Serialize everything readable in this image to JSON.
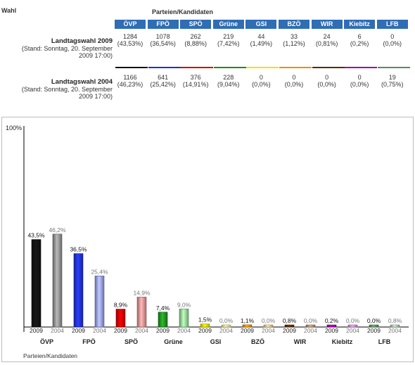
{
  "header": {
    "wahl_label": "Wahl",
    "parteien_label": "Parteien/Kandidaten"
  },
  "parties": [
    {
      "name": "ÖVP",
      "color": "#111111"
    },
    {
      "name": "FPÖ",
      "color": "#1f2fd0"
    },
    {
      "name": "SPÖ",
      "color": "#d40000"
    },
    {
      "name": "Grüne",
      "color": "#1e8c1e"
    },
    {
      "name": "GSI",
      "color": "#f0e000"
    },
    {
      "name": "BZÖ",
      "color": "#f08c00"
    },
    {
      "name": "WIR",
      "color": "#5a2a00"
    },
    {
      "name": "Kiebitz",
      "color": "#a000a0"
    },
    {
      "name": "LFB",
      "color": "#5a8c5a"
    }
  ],
  "rows": [
    {
      "title": "Landtagswahl 2009",
      "stand_line1": "(Stand: Sonntag, 20. September",
      "stand_line2": "2009 17:00)",
      "votes": [
        "1284",
        "1078",
        "262",
        "219",
        "44",
        "33",
        "24",
        "6",
        "0"
      ],
      "pcts": [
        "(43,53%)",
        "(36,54%)",
        "(8,88%)",
        "(7,42%)",
        "(1,49%)",
        "(1,12%)",
        "(0,81%)",
        "(0,2%)",
        "(0,0%)"
      ]
    },
    {
      "title": "Landtagswahl 2004",
      "stand_line1": "(Stand: Sonntag, 20. September",
      "stand_line2": "2009 17:00)",
      "votes": [
        "1166",
        "641",
        "376",
        "228",
        "0",
        "0",
        "0",
        "0",
        "19"
      ],
      "pcts": [
        "(46,23%)",
        "(25,42%)",
        "(14,91%)",
        "(9,04%)",
        "(0,0%)",
        "(0,0%)",
        "(0,0%)",
        "(0,0%)",
        "(0,75%)"
      ]
    }
  ],
  "chart_data": {
    "type": "bar",
    "ylim": [
      0,
      100
    ],
    "ytick_label": "100%",
    "xlabel": "Parteien/Kandidaten",
    "categories": [
      "ÖVP",
      "FPÖ",
      "SPÖ",
      "Grüne",
      "GSI",
      "BZÖ",
      "WIR",
      "Kiebitz",
      "LFB"
    ],
    "series": [
      {
        "name": "2009",
        "values": [
          43.5,
          36.5,
          8.9,
          7.4,
          1.5,
          1.1,
          0.8,
          0.2,
          0.0
        ],
        "labels": [
          "43,5%",
          "36,5%",
          "8,9%",
          "7,4%",
          "1,5%",
          "1,1%",
          "0,8%",
          "0,2%",
          "0,0%"
        ],
        "colors": [
          "#111111",
          "#1f2fd0",
          "#d40000",
          "#1e8c1e",
          "#f0e000",
          "#f08c00",
          "#5a2a00",
          "#a000a0",
          "#5a8c5a"
        ]
      },
      {
        "name": "2004",
        "values": [
          46.2,
          25.4,
          14.9,
          9.0,
          0.0,
          0.0,
          0.0,
          0.0,
          0.8
        ],
        "labels": [
          "46,2%",
          "25,4%",
          "14,9%",
          "9,0%",
          "0,0%",
          "0,0%",
          "0,0%",
          "0,0%",
          "0,8%"
        ],
        "colors": [
          "#8a8a8a",
          "#8f97ea",
          "#e58a8a",
          "#8fd68f",
          "#f7ef8a",
          "#f7c585",
          "#b08a6a",
          "#d88ad8",
          "#a8c8a8"
        ]
      }
    ]
  }
}
